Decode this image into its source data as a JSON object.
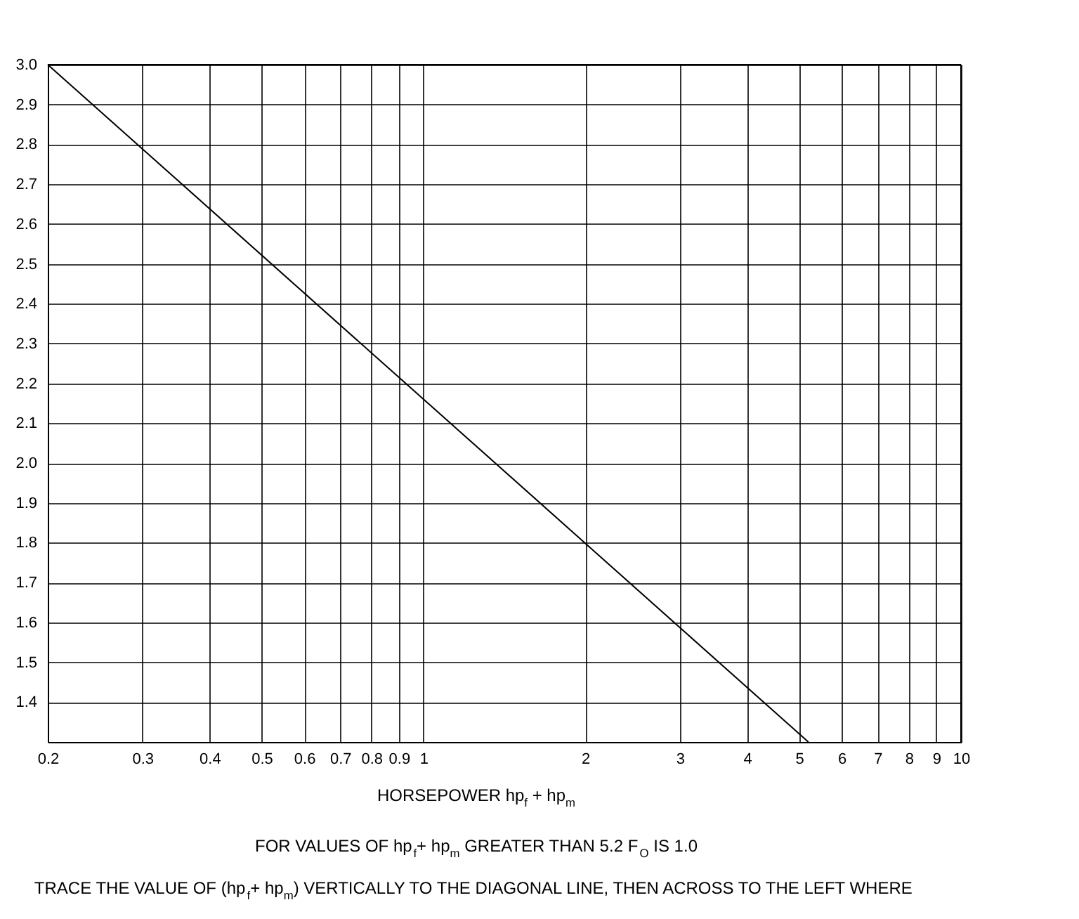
{
  "chart_data": {
    "type": "line",
    "xlabel": "HORSEPOWER hp$_{f}$ + hp$_{m}$",
    "x": [
      0.2,
      5.2
    ],
    "series": [
      {
        "color": "#000000",
        "values": [
          3.0,
          1.3
        ]
      }
    ],
    "log": "x",
    "xlim": [
      0.2,
      10
    ],
    "ylim": [
      1.3,
      3.0
    ],
    "xticks": [
      0.2,
      0.3,
      0.4,
      0.5,
      0.6,
      0.7,
      0.8,
      0.9,
      1,
      2,
      3,
      4,
      5,
      6,
      7,
      8,
      9,
      10
    ],
    "yticks": [
      1.4,
      1.5,
      1.6,
      1.7,
      1.8,
      1.9,
      {
        "value": 2,
        "label": "2.0"
      },
      2.1,
      2.2,
      2.3,
      2.4,
      2.5,
      2.6,
      2.7,
      2.8,
      2.9,
      {
        "value": 3,
        "label": "3.0"
      }
    ],
    "grid": true,
    "marker": "none",
    "line_style": "solid",
    "annotations": [
      "FOR VALUES OF hp$_{f}$+ hp$_{m}$ GREATER THAN 5.2 F$_{O}$ IS 1.0",
      "TRACE THE VALUE OF (hp$_{f}$+ hp$_{m}$) VERTICALLY TO THE DIAGONAL LINE, THEN ACROSS TO THE LEFT WHERE"
    ]
  }
}
